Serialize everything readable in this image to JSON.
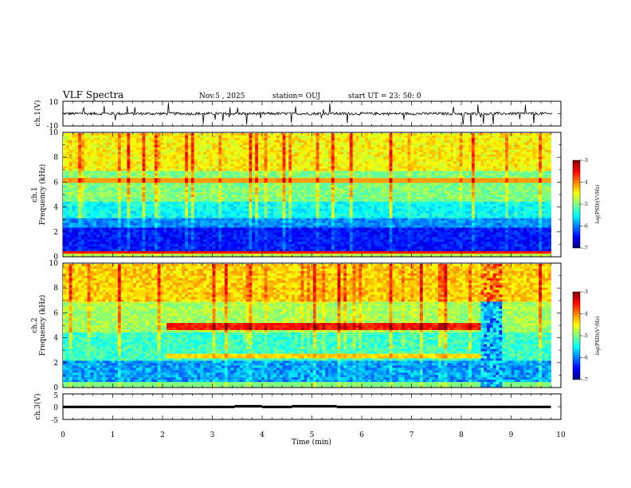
{
  "header": {
    "title": "VLF Spectra",
    "date": "Nov.5  , 2025",
    "station": "station= OUJ",
    "start": "start  UT  =   23: 50: 0"
  },
  "chart_data": [
    {
      "type": "line",
      "panel": "ch1-waveform",
      "ylabel": "ch.1(V)",
      "ylim": [
        -10,
        10
      ],
      "yticks": [
        "10",
        "-10"
      ],
      "xlim": [
        0,
        10
      ],
      "description_values": {
        "baseline": 0,
        "typical_amplitude": 2
      }
    },
    {
      "type": "heatmap",
      "panel": "ch1-spectrogram",
      "ylabel": "ch.1\nFrequency (kHz)",
      "ylim": [
        0,
        10
      ],
      "yticks": [
        "0",
        "2",
        "4",
        "6",
        "8",
        "10"
      ],
      "xlim": [
        0,
        9.8
      ],
      "colorbar": {
        "label": "log(PSD)(V²/Hz)",
        "range": [
          -7,
          -3
        ],
        "ticks": [
          "-3",
          "-4",
          "-5",
          "-6",
          "-7"
        ]
      },
      "bands_khz": [
        [
          0.3,
          3.0
        ],
        [
          6.0,
          6.3
        ]
      ]
    },
    {
      "type": "heatmap",
      "panel": "ch2-spectrogram",
      "ylabel": "ch.2\nFrequency (kHz)",
      "ylim": [
        0,
        10
      ],
      "yticks": [
        "0",
        "2",
        "4",
        "6",
        "8",
        "10"
      ],
      "xlim": [
        0,
        9.8
      ],
      "colorbar": {
        "label": "log(PSD)(V²/Hz)",
        "range": [
          -7,
          -3
        ],
        "ticks": [
          "-3",
          "-4",
          "-5",
          "-6",
          "-7"
        ]
      },
      "bands_khz": [
        [
          4.7,
          5.1
        ],
        [
          2.3,
          2.6
        ],
        [
          6.6,
          6.7
        ]
      ],
      "band_time_range_min": [
        2.1,
        8.4
      ]
    },
    {
      "type": "line",
      "panel": "ch3-waveform",
      "ylabel": "ch.3(V)",
      "ylim": [
        -5,
        5
      ],
      "yticks": [
        "5",
        "0",
        "-5"
      ],
      "xlim": [
        0,
        10
      ],
      "segments": [
        {
          "x0": 0,
          "x1": 3.45,
          "y": -0.1
        },
        {
          "x0": 3.45,
          "x1": 4.0,
          "y": 0.15
        },
        {
          "x0": 4.0,
          "x1": 4.6,
          "y": -0.1
        },
        {
          "x0": 4.6,
          "x1": 5.5,
          "y": 0.15
        },
        {
          "x0": 5.5,
          "x1": 9.8,
          "y": -0.1
        }
      ]
    }
  ],
  "xaxis": {
    "label": "Time  (min)",
    "ticks": [
      "0",
      "1",
      "2",
      "3",
      "4",
      "5",
      "6",
      "7",
      "8",
      "9",
      "10"
    ],
    "range": [
      0,
      10
    ]
  },
  "colors": {
    "jet": [
      "#00007f",
      "#0000ff",
      "#007fff",
      "#00ffff",
      "#7fff7f",
      "#ffff00",
      "#ff7f00",
      "#ff0000",
      "#7f0000"
    ]
  }
}
